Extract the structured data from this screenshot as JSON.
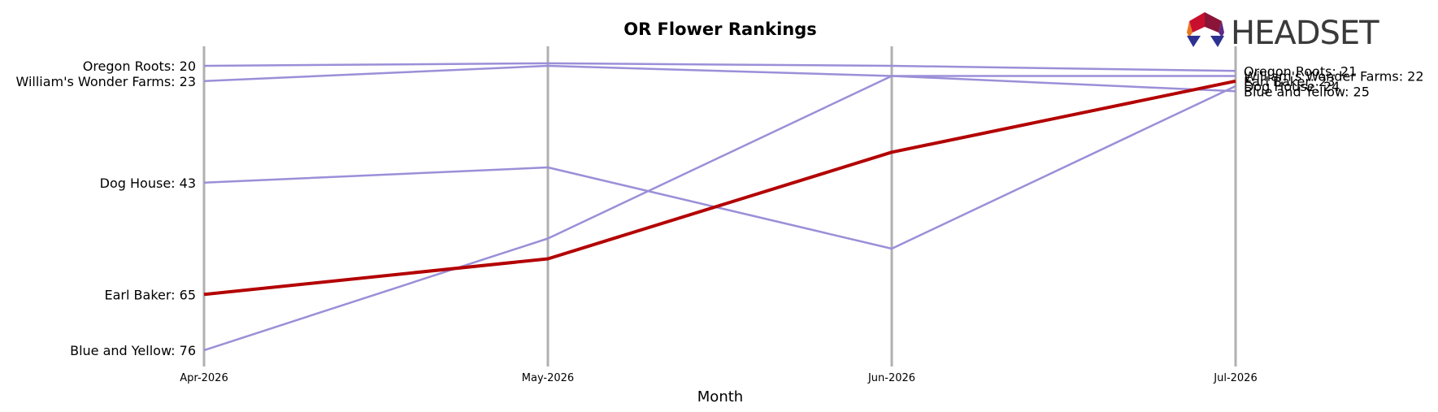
{
  "chart_data": {
    "type": "line",
    "title": "OR Flower Rankings",
    "xlabel": "Month",
    "ylabel": "",
    "categories": [
      "Apr-2026",
      "May-2026",
      "Jun-2026",
      "Jul-2026"
    ],
    "y_inverted": true,
    "ylim": [
      80,
      15
    ],
    "grid": false,
    "highlight_series": "Earl Baker",
    "colors": {
      "highlight": "#b30000",
      "other": "#9b8fd8",
      "month_axis": "#b0b0b0"
    },
    "series": [
      {
        "name": "Oregon Roots",
        "values": [
          20,
          19.5,
          20,
          21
        ],
        "start_label": "Oregon Roots: 20",
        "end_label": "Oregon Roots: 21"
      },
      {
        "name": "William's Wonder Farms",
        "values": [
          23,
          20,
          22,
          22
        ],
        "start_label": "William's Wonder Farms: 23",
        "end_label": "William's Wonder Farms: 22"
      },
      {
        "name": "Dog House",
        "values": [
          43,
          40,
          56,
          24
        ],
        "start_label": "Dog House: 43",
        "end_label": "Dog House: 24"
      },
      {
        "name": "Earl Baker",
        "values": [
          65,
          58,
          37,
          23
        ],
        "start_label": "Earl Baker: 65",
        "end_label": "Earl Baker: 23"
      },
      {
        "name": "Blue and Yellow",
        "values": [
          76,
          54,
          22,
          25
        ],
        "start_label": "Blue and Yellow: 76",
        "end_label": "Blue and Yellow: 25"
      }
    ]
  },
  "logo": {
    "text": "HEADSET",
    "colors": [
      "#c8102e",
      "#8a1538",
      "#e87722",
      "#5b2a86",
      "#2e3192"
    ]
  }
}
